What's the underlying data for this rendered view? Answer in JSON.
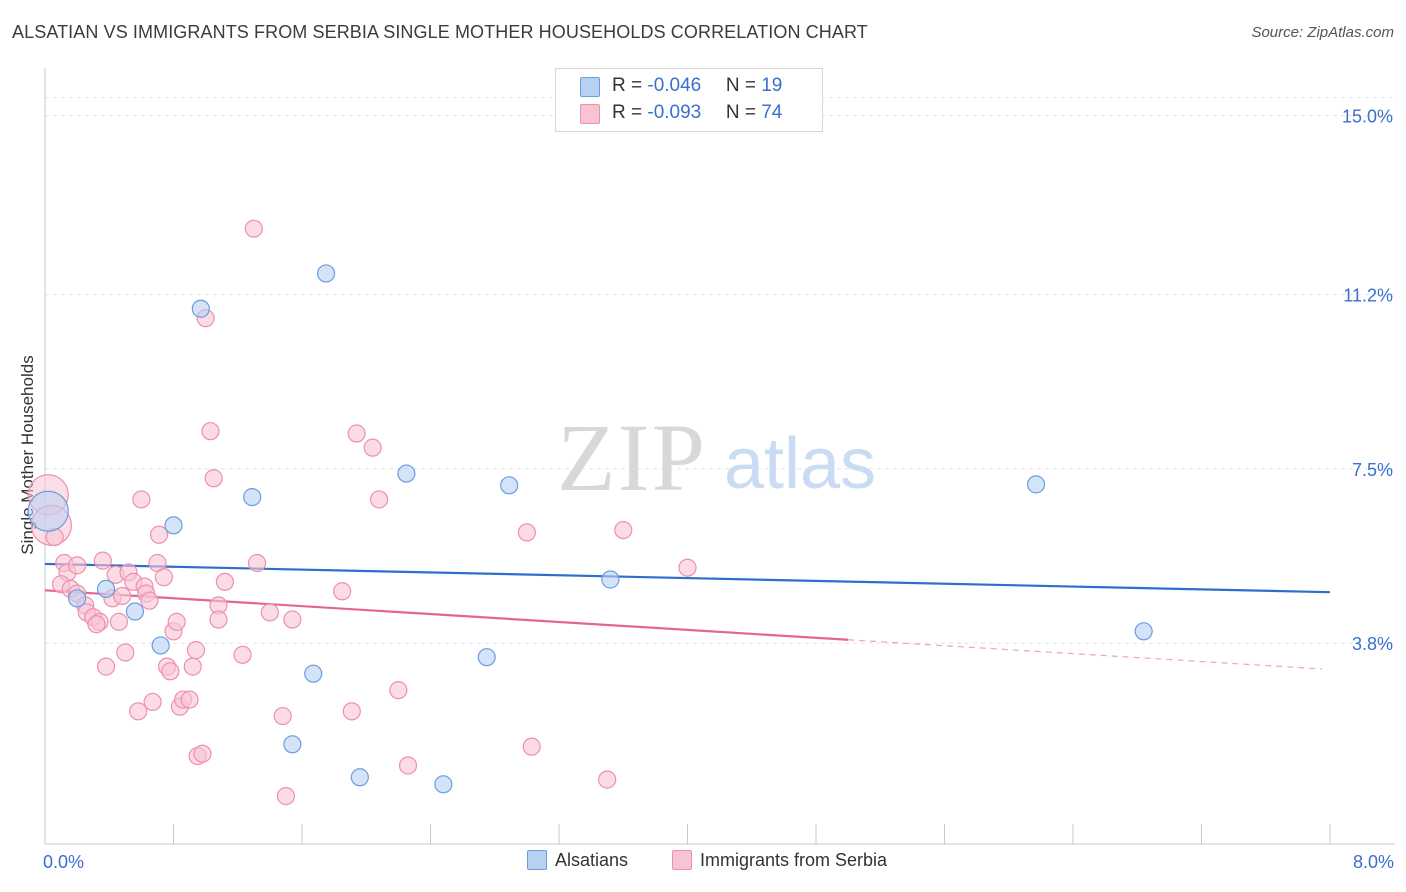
{
  "title": "ALSATIAN VS IMMIGRANTS FROM SERBIA SINGLE MOTHER HOUSEHOLDS CORRELATION CHART",
  "source": "Source: ZipAtlas.com",
  "watermark": {
    "zip": "ZIP",
    "atlas": "atlas"
  },
  "legend_top": {
    "rows": [
      {
        "r_label": "R = ",
        "r_value": "-0.046",
        "n_label": "N = ",
        "n_value": "19"
      },
      {
        "r_label": "R = ",
        "r_value": "-0.093",
        "n_label": "N = ",
        "n_value": "74"
      }
    ]
  },
  "legend_bottom": {
    "series1": "Alsatians",
    "series2": "Immigrants from Serbia"
  },
  "colors": {
    "blue_fill": "#b8d0f2",
    "blue_stroke": "#6a9de0",
    "blue_line": "#2f6fcc",
    "pink_fill": "#f8c4d4",
    "pink_stroke": "#ee8fb0",
    "pink_line": "#e2678f",
    "grid": "#dde3ea",
    "axis_text": "#3a6fd0"
  },
  "chart_data": {
    "type": "scatter",
    "title": "ALSATIAN VS IMMIGRANTS FROM SERBIA SINGLE MOTHER HOUSEHOLDS CORRELATION CHART",
    "xlabel": "",
    "ylabel": "Single Mother Households",
    "xlim": [
      0,
      8.0
    ],
    "ylim": [
      0,
      15.8
    ],
    "x_tick_labels": [
      "0.0%",
      "8.0%"
    ],
    "y_ticks": [
      3.8,
      7.5,
      11.2,
      15.0
    ],
    "y_tick_labels": [
      "3.8%",
      "7.5%",
      "11.2%",
      "15.0%"
    ],
    "series": [
      {
        "name": "Alsatians",
        "color": "blue",
        "r": -0.046,
        "n": 19,
        "trend": {
          "x0": 0.0,
          "y0": 5.48,
          "x1": 8.0,
          "y1": 4.88,
          "solid_until": 8.0
        },
        "points": [
          {
            "x": 0.02,
            "y": 6.6,
            "big": true
          },
          {
            "x": 0.2,
            "y": 4.75
          },
          {
            "x": 0.38,
            "y": 4.95
          },
          {
            "x": 0.56,
            "y": 4.47
          },
          {
            "x": 0.72,
            "y": 3.75
          },
          {
            "x": 0.8,
            "y": 6.3
          },
          {
            "x": 0.97,
            "y": 10.9
          },
          {
            "x": 1.29,
            "y": 6.9
          },
          {
            "x": 1.54,
            "y": 1.65
          },
          {
            "x": 1.67,
            "y": 3.15
          },
          {
            "x": 1.75,
            "y": 11.65
          },
          {
            "x": 1.96,
            "y": 0.95
          },
          {
            "x": 2.25,
            "y": 7.4
          },
          {
            "x": 2.48,
            "y": 0.8
          },
          {
            "x": 2.75,
            "y": 3.5
          },
          {
            "x": 2.89,
            "y": 7.15
          },
          {
            "x": 3.52,
            "y": 5.15
          },
          {
            "x": 6.17,
            "y": 7.17
          },
          {
            "x": 6.84,
            "y": 4.05
          }
        ]
      },
      {
        "name": "Immigrants from Serbia",
        "color": "pink",
        "r": -0.093,
        "n": 74,
        "trend": {
          "x0": 0.0,
          "y0": 4.92,
          "x1": 7.95,
          "y1": 3.25,
          "solid_until": 5.0
        },
        "points": [
          {
            "x": 0.02,
            "y": 6.95,
            "big": true
          },
          {
            "x": 0.04,
            "y": 6.3,
            "big": true
          },
          {
            "x": 0.06,
            "y": 6.05
          },
          {
            "x": 0.12,
            "y": 5.5
          },
          {
            "x": 0.14,
            "y": 5.3
          },
          {
            "x": 0.1,
            "y": 5.05
          },
          {
            "x": 0.16,
            "y": 4.95
          },
          {
            "x": 0.2,
            "y": 4.85
          },
          {
            "x": 0.2,
            "y": 5.45
          },
          {
            "x": 0.25,
            "y": 4.6
          },
          {
            "x": 0.26,
            "y": 4.45
          },
          {
            "x": 0.3,
            "y": 4.35
          },
          {
            "x": 0.34,
            "y": 4.25
          },
          {
            "x": 0.32,
            "y": 4.2
          },
          {
            "x": 0.36,
            "y": 5.55
          },
          {
            "x": 0.38,
            "y": 3.3
          },
          {
            "x": 0.42,
            "y": 4.75
          },
          {
            "x": 0.44,
            "y": 5.25
          },
          {
            "x": 0.46,
            "y": 4.25
          },
          {
            "x": 0.48,
            "y": 4.8
          },
          {
            "x": 0.5,
            "y": 3.6
          },
          {
            "x": 0.52,
            "y": 5.3
          },
          {
            "x": 0.55,
            "y": 5.1
          },
          {
            "x": 0.58,
            "y": 2.35
          },
          {
            "x": 0.6,
            "y": 6.85
          },
          {
            "x": 0.62,
            "y": 5.0
          },
          {
            "x": 0.63,
            "y": 4.85
          },
          {
            "x": 0.65,
            "y": 4.7
          },
          {
            "x": 0.67,
            "y": 2.55
          },
          {
            "x": 0.7,
            "y": 5.5
          },
          {
            "x": 0.71,
            "y": 6.1
          },
          {
            "x": 0.74,
            "y": 5.2
          },
          {
            "x": 0.76,
            "y": 3.3
          },
          {
            "x": 0.78,
            "y": 3.2
          },
          {
            "x": 0.8,
            "y": 4.05
          },
          {
            "x": 0.82,
            "y": 4.25
          },
          {
            "x": 0.84,
            "y": 2.45
          },
          {
            "x": 0.86,
            "y": 2.6
          },
          {
            "x": 0.9,
            "y": 2.6
          },
          {
            "x": 0.92,
            "y": 3.3
          },
          {
            "x": 0.94,
            "y": 3.65
          },
          {
            "x": 0.95,
            "y": 1.4
          },
          {
            "x": 0.98,
            "y": 1.45
          },
          {
            "x": 1.0,
            "y": 10.7
          },
          {
            "x": 1.03,
            "y": 8.3
          },
          {
            "x": 1.05,
            "y": 7.3
          },
          {
            "x": 1.08,
            "y": 4.6
          },
          {
            "x": 1.08,
            "y": 4.3
          },
          {
            "x": 1.12,
            "y": 5.1
          },
          {
            "x": 1.23,
            "y": 3.55
          },
          {
            "x": 1.3,
            "y": 12.6
          },
          {
            "x": 1.32,
            "y": 5.5
          },
          {
            "x": 1.4,
            "y": 4.45
          },
          {
            "x": 1.48,
            "y": 2.25
          },
          {
            "x": 1.5,
            "y": 0.55
          },
          {
            "x": 1.54,
            "y": 4.3
          },
          {
            "x": 1.85,
            "y": 4.9
          },
          {
            "x": 1.91,
            "y": 2.35
          },
          {
            "x": 1.94,
            "y": 8.25
          },
          {
            "x": 2.04,
            "y": 7.95
          },
          {
            "x": 2.08,
            "y": 6.85
          },
          {
            "x": 2.2,
            "y": 2.8
          },
          {
            "x": 2.26,
            "y": 1.2
          },
          {
            "x": 3.0,
            "y": 6.15
          },
          {
            "x": 3.03,
            "y": 1.6
          },
          {
            "x": 3.5,
            "y": 0.9
          },
          {
            "x": 3.6,
            "y": 6.2
          },
          {
            "x": 4.0,
            "y": 5.4
          }
        ]
      }
    ]
  }
}
